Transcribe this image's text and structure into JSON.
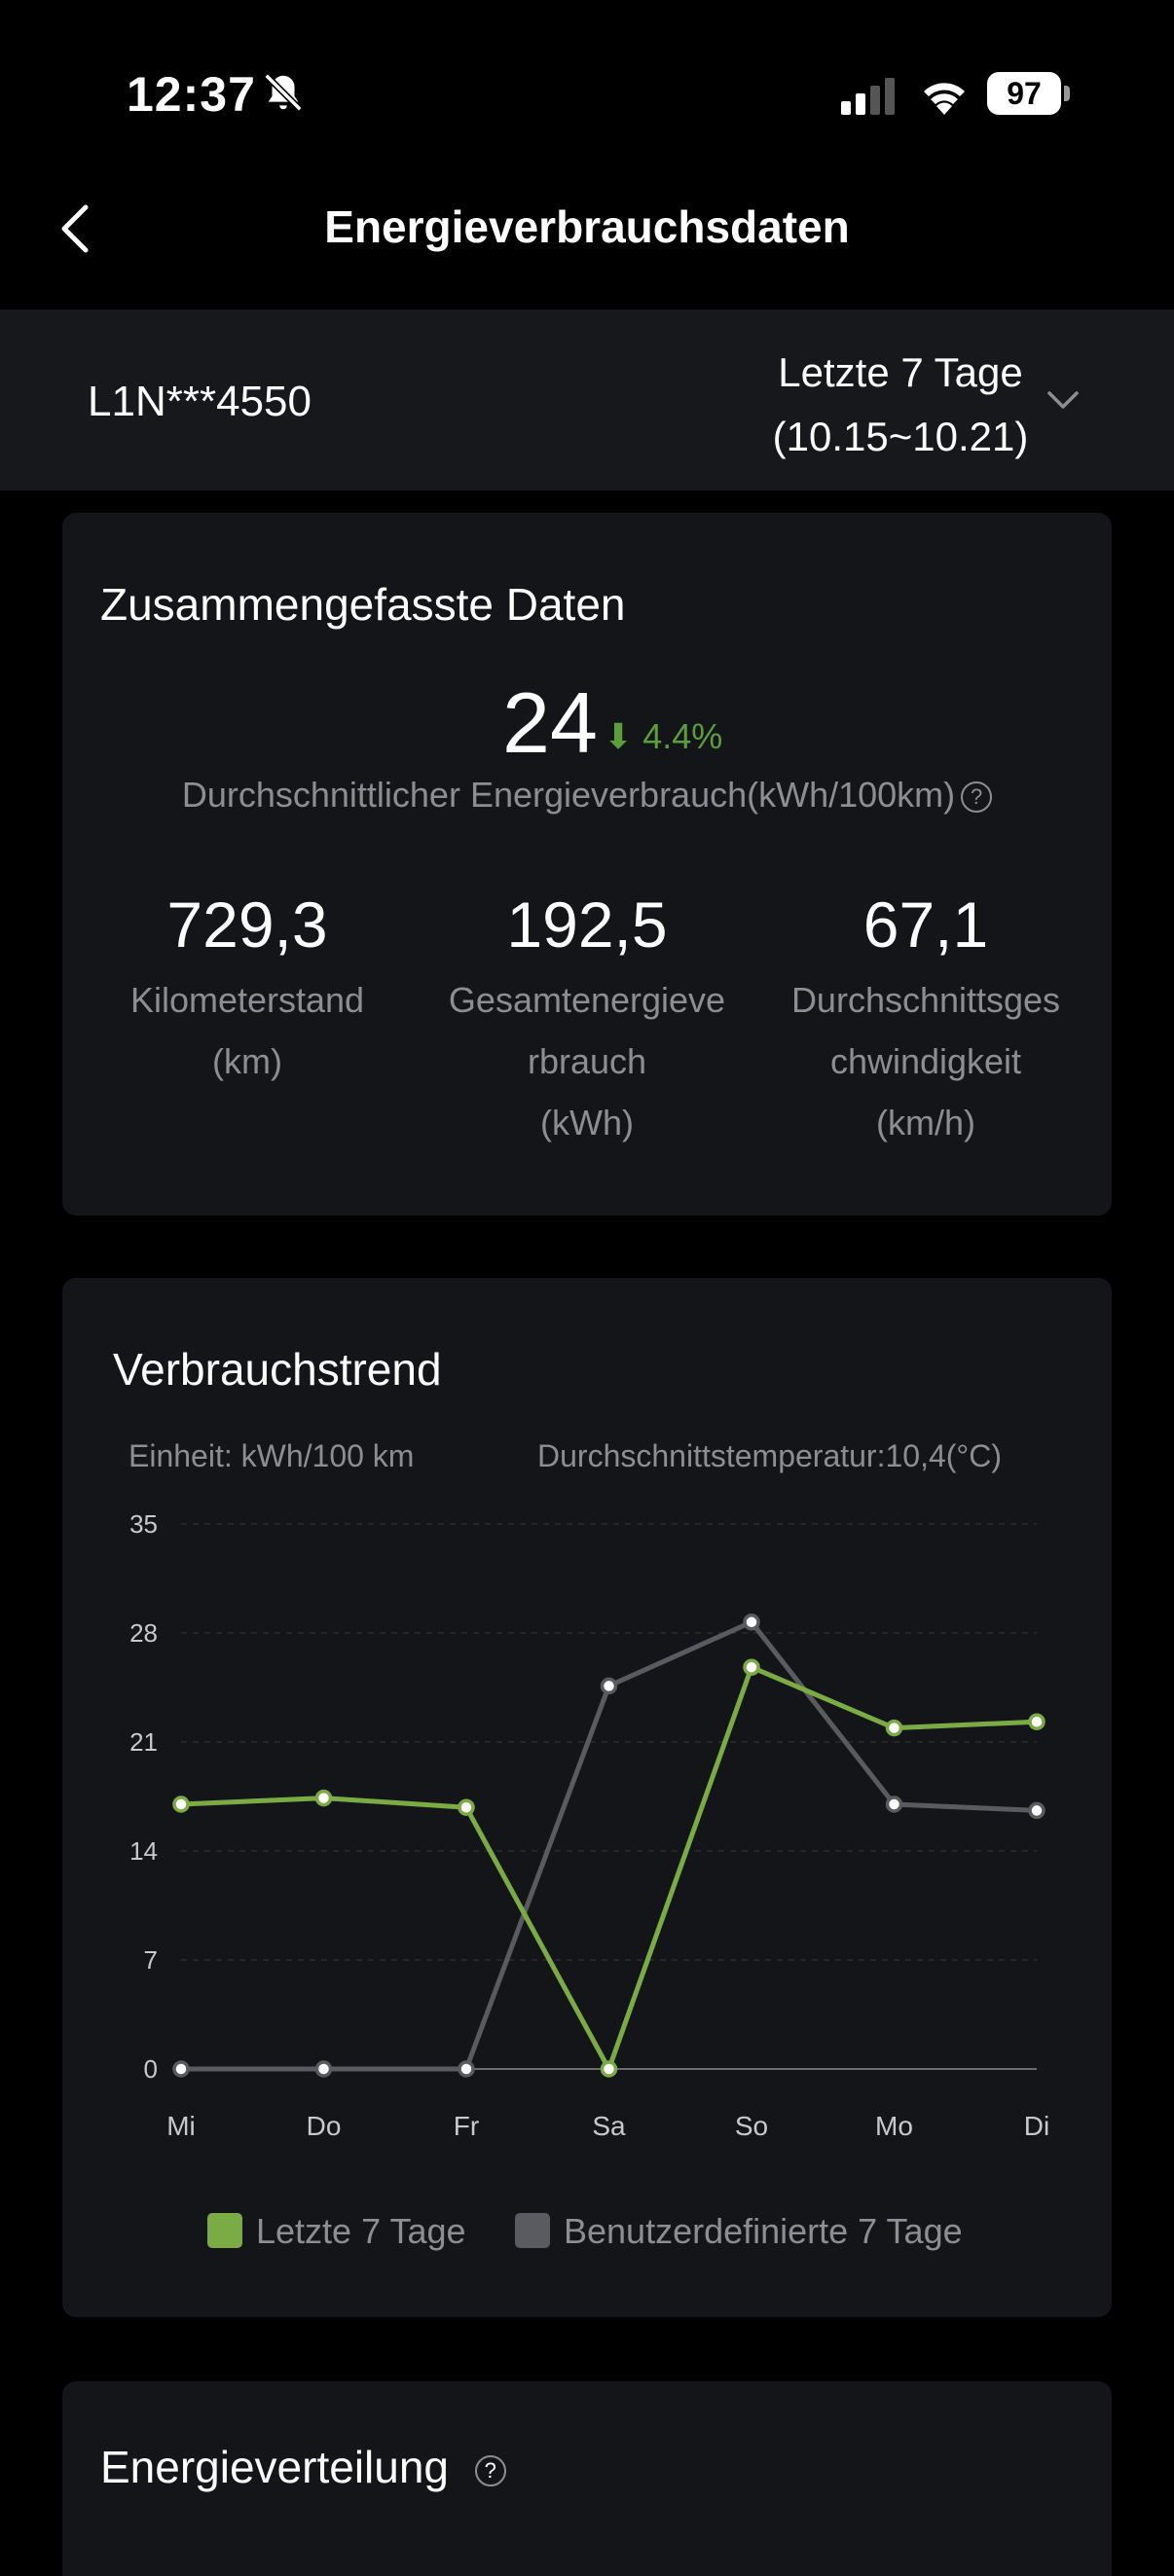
{
  "status": {
    "time": "12:37",
    "battery": "97"
  },
  "header": {
    "title": "Energieverbrauchsdaten"
  },
  "selector": {
    "vehicle": "L1N***4550",
    "period_line1": "Letzte 7 Tage",
    "period_line2": "(10.15~10.21)"
  },
  "summary": {
    "title": "Zusammengefasste Daten",
    "avg_value": "24",
    "avg_change": "4.4%",
    "avg_label": "Durchschnittlicher Energieverbrauch(kWh/100km)",
    "stats": [
      {
        "value": "729,3",
        "label": "Kilometerstand\n(km)"
      },
      {
        "value": "192,5",
        "label": "Gesamtenergieve\nrbrauch\n(kWh)"
      },
      {
        "value": "67,1",
        "label": "Durchschnittsges\nchwindigkeit\n(km/h)"
      }
    ]
  },
  "trend": {
    "title": "Verbrauchstrend",
    "unit": "Einheit: kWh/100 km",
    "temperature": "Durchschnittstemperatur:10,4(°C)"
  },
  "chart_data": {
    "type": "line",
    "categories": [
      "Mi",
      "Do",
      "Fr",
      "Sa",
      "So",
      "Mo",
      "Di"
    ],
    "yticks": [
      0,
      7,
      14,
      21,
      28,
      35
    ],
    "ylim": [
      0,
      35
    ],
    "grid": true,
    "legend_position": "bottom",
    "series": [
      {
        "name": "Letzte 7 Tage",
        "color": "#7aab45",
        "values": [
          17.0,
          17.4,
          16.8,
          0,
          25.8,
          21.9,
          22.3
        ]
      },
      {
        "name": "Benutzerdefinierte 7 Tage",
        "color": "#5a5b60",
        "values": [
          0,
          0,
          0,
          24.6,
          28.7,
          17.0,
          16.6
        ]
      }
    ]
  },
  "distribution": {
    "title": "Energieverteilung"
  },
  "colors": {
    "background": "#000000",
    "card": "#141518",
    "accent_green": "#7aab45",
    "down_green": "#5c9e3a",
    "muted_text": "#8c8e93"
  }
}
